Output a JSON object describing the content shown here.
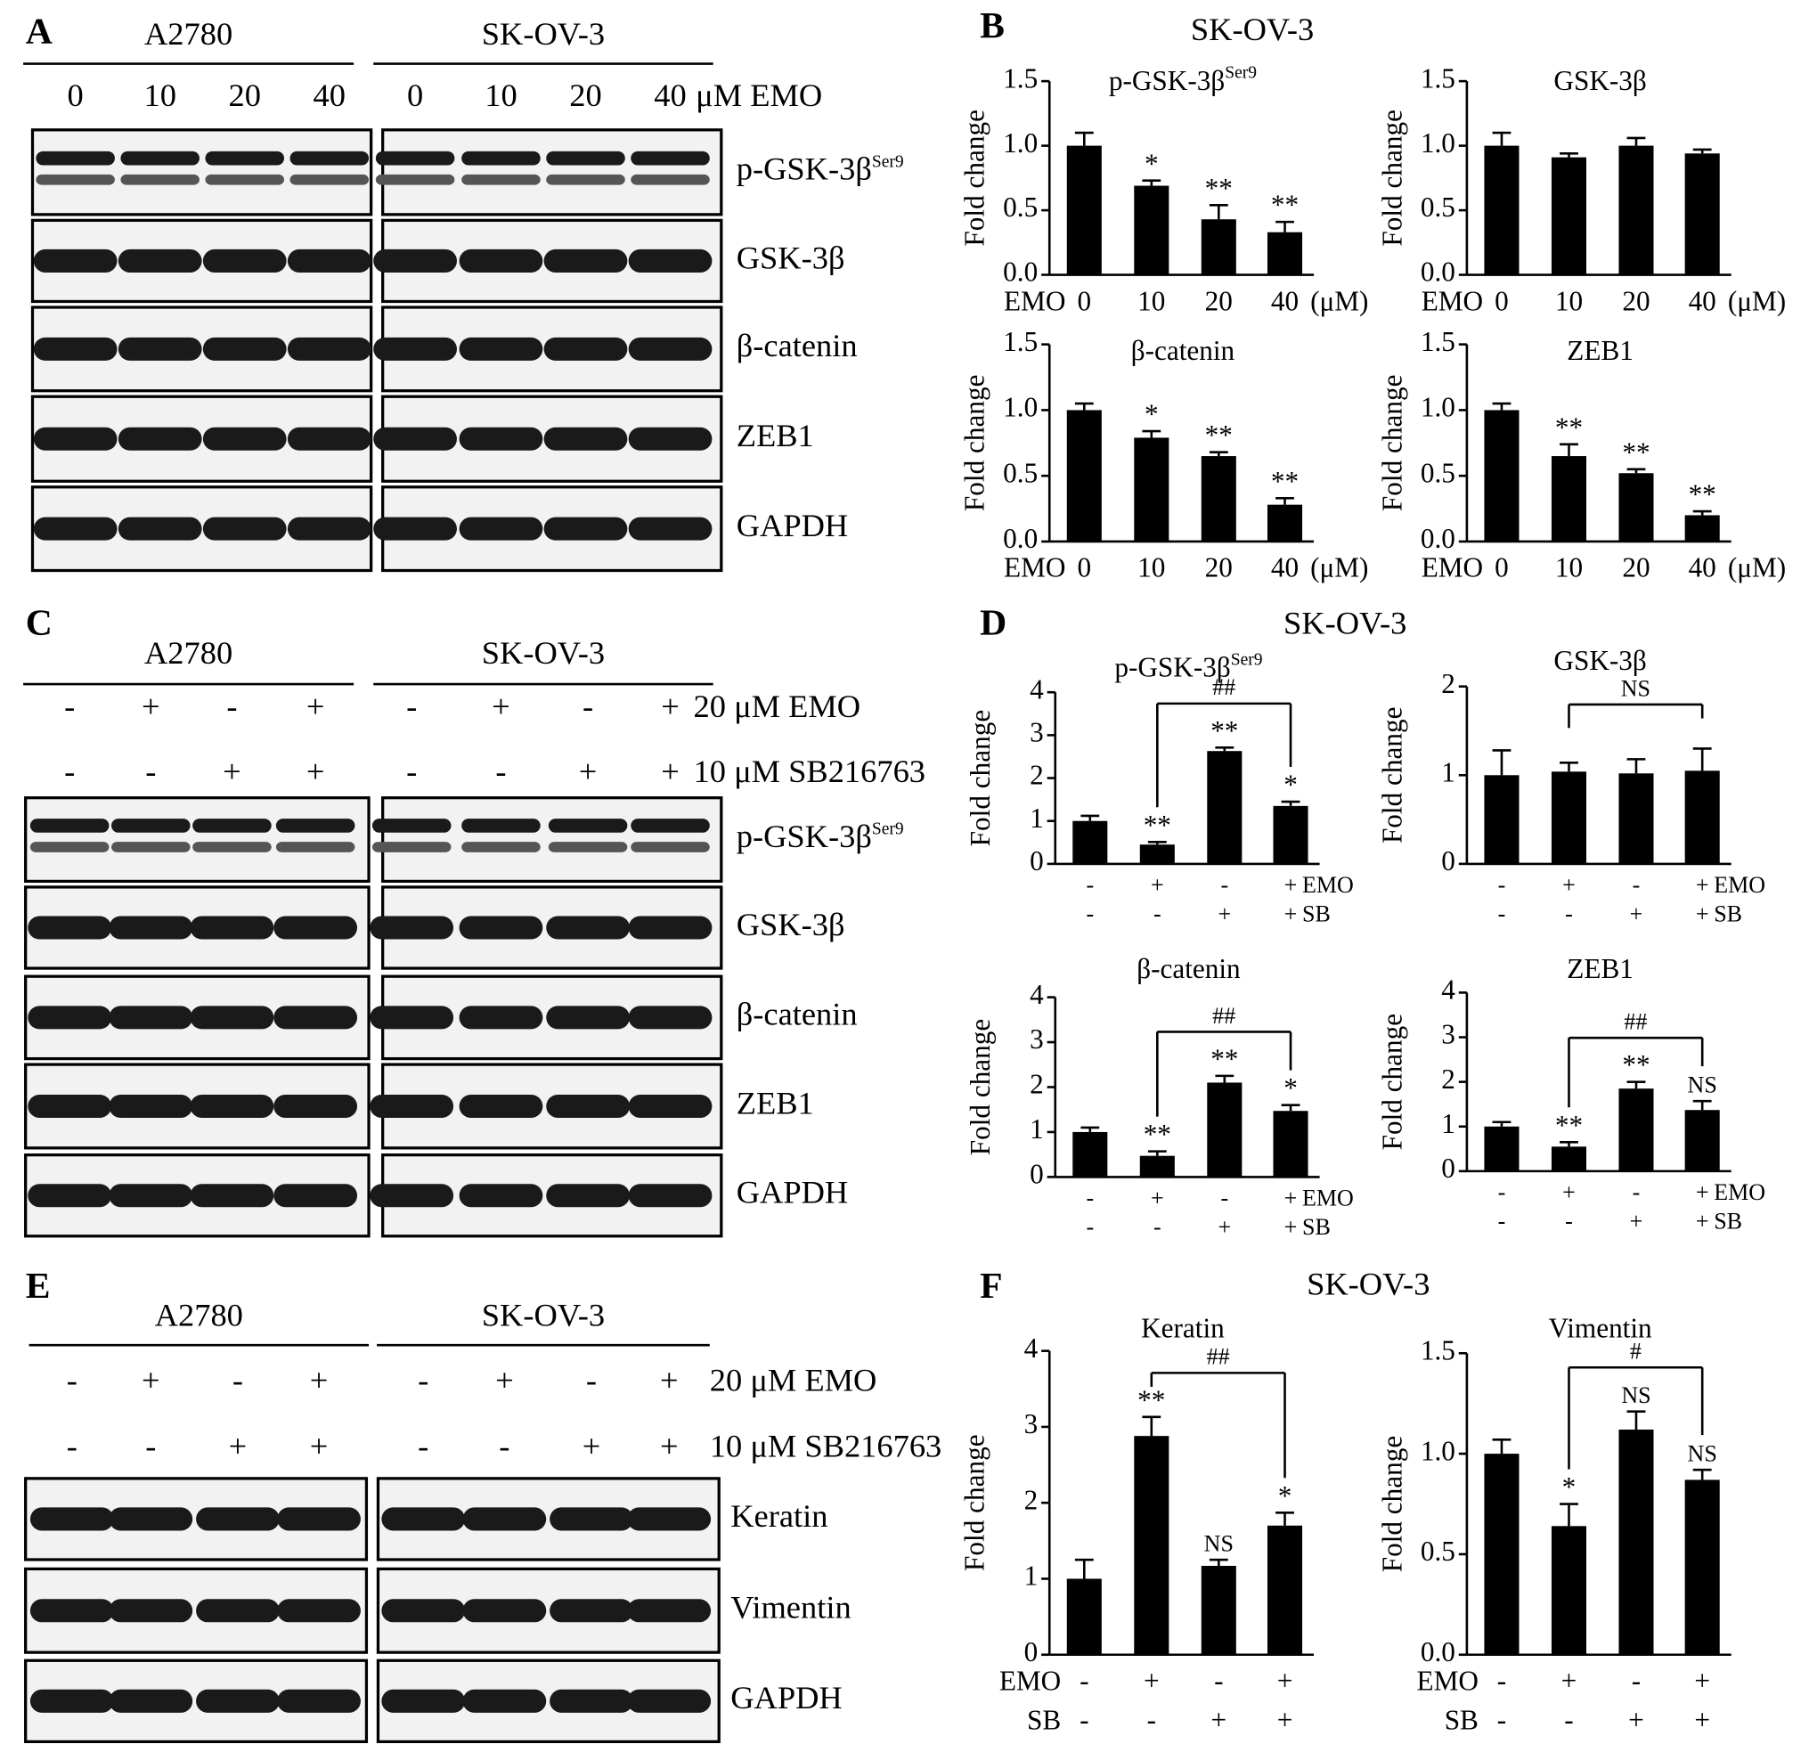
{
  "blots": [
    {
      "letter": "A",
      "groups": [
        "A2780",
        "SK-OV-3"
      ],
      "lanes": [
        "0",
        "10",
        "20",
        "40"
      ],
      "lane_unit": "μM EMO",
      "bands": [
        {
          "name": "p-GSK-3β",
          "sup": "Ser9"
        },
        {
          "name": "GSK-3β"
        },
        {
          "name": "β-catenin"
        },
        {
          "name": "ZEB1"
        },
        {
          "name": "GAPDH"
        }
      ]
    },
    {
      "letter": "C",
      "groups": [
        "A2780",
        "SK-OV-3"
      ],
      "treatments": [
        {
          "signs": [
            "-",
            "+",
            "-",
            "+"
          ],
          "name": "20 μM EMO"
        },
        {
          "signs": [
            "-",
            "-",
            "+",
            "+"
          ],
          "name": "10 μM SB216763"
        }
      ],
      "bands": [
        {
          "name": "p-GSK-3β",
          "sup": "Ser9"
        },
        {
          "name": "GSK-3β"
        },
        {
          "name": "β-catenin"
        },
        {
          "name": "ZEB1"
        },
        {
          "name": "GAPDH"
        }
      ]
    },
    {
      "letter": "E",
      "groups": [
        "A2780",
        "SK-OV-3"
      ],
      "treatments": [
        {
          "signs": [
            "-",
            "+",
            "-",
            "+"
          ],
          "name": "20 μM EMO"
        },
        {
          "signs": [
            "-",
            "-",
            "+",
            "+"
          ],
          "name": "10 μM SB216763"
        }
      ],
      "bands": [
        {
          "name": "Keratin"
        },
        {
          "name": "Vimentin"
        },
        {
          "name": "GAPDH"
        }
      ]
    }
  ],
  "chart_headers": [
    {
      "letter": "B",
      "title": "SK-OV-3"
    },
    {
      "letter": "D",
      "title": "SK-OV-3"
    },
    {
      "letter": "F",
      "title": "SK-OV-3"
    }
  ],
  "chart_data": [
    {
      "type": "bar",
      "title": "p-GSK-3β",
      "title_sup": "Ser9",
      "ylabel": "Fold change",
      "color": "#000000",
      "categories": [
        "0",
        "10",
        "20",
        "40"
      ],
      "x_prefix": "EMO",
      "x_unit": "(μM)",
      "values": [
        1.0,
        0.69,
        0.43,
        0.33
      ],
      "errors": [
        0.1,
        0.04,
        0.11,
        0.08
      ],
      "annotations": [
        null,
        "*",
        "**",
        "**"
      ],
      "ylim": [
        0,
        1.5
      ],
      "yticks": [
        {
          "value": 0,
          "label": "0.0"
        },
        0.5,
        {
          "value": 1,
          "label": "1.0"
        },
        1.5
      ]
    },
    {
      "type": "bar",
      "title": "GSK-3β",
      "ylabel": "Fold change",
      "color": "#000000",
      "categories": [
        "0",
        "10",
        "20",
        "40"
      ],
      "x_prefix": "EMO",
      "x_unit": "(μM)",
      "values": [
        1.0,
        0.91,
        1.0,
        0.94
      ],
      "errors": [
        0.1,
        0.03,
        0.06,
        0.03
      ],
      "ylim": [
        0,
        1.5
      ],
      "yticks": [
        {
          "value": 0,
          "label": "0.0"
        },
        0.5,
        {
          "value": 1,
          "label": "1.0"
        },
        1.5
      ]
    },
    {
      "type": "bar",
      "title": "β-catenin",
      "ylabel": "Fold change",
      "color": "#000000",
      "categories": [
        "0",
        "10",
        "20",
        "40"
      ],
      "x_prefix": "EMO",
      "x_unit": "(μM)",
      "values": [
        1.0,
        0.79,
        0.65,
        0.28
      ],
      "errors": [
        0.05,
        0.05,
        0.03,
        0.05
      ],
      "annotations": [
        null,
        "*",
        "**",
        "**"
      ],
      "ylim": [
        0,
        1.5
      ],
      "yticks": [
        {
          "value": 0,
          "label": "0.0"
        },
        0.5,
        {
          "value": 1,
          "label": "1.0"
        },
        1.5
      ]
    },
    {
      "type": "bar",
      "title": "ZEB1",
      "ylabel": "Fold change",
      "color": "#000000",
      "categories": [
        "0",
        "10",
        "20",
        "40"
      ],
      "x_prefix": "EMO",
      "x_unit": "(μM)",
      "values": [
        1.0,
        0.65,
        0.52,
        0.2
      ],
      "errors": [
        0.05,
        0.09,
        0.03,
        0.03
      ],
      "annotations": [
        null,
        "**",
        "**",
        "**"
      ],
      "ylim": [
        0,
        1.5
      ],
      "yticks": [
        {
          "value": 0,
          "label": "0.0"
        },
        0.5,
        {
          "value": 1,
          "label": "1.0"
        },
        1.5
      ]
    },
    {
      "type": "bar",
      "title": "p-GSK-3β",
      "title_sup": "Ser9",
      "ylabel": "Fold change",
      "color": "#000000",
      "treatments": [
        {
          "name": "EMO",
          "signs": [
            "-",
            "+",
            "-",
            "+"
          ]
        },
        {
          "name": "SB",
          "signs": [
            "-",
            "-",
            "+",
            "+"
          ]
        }
      ],
      "label_pos": "right",
      "values": [
        1.0,
        0.45,
        2.63,
        1.35
      ],
      "errors": [
        0.12,
        0.06,
        0.08,
        0.1
      ],
      "annotations": [
        null,
        "**",
        "**",
        "*"
      ],
      "bracket_label": "##",
      "ylim": [
        0,
        4
      ],
      "yticks": [
        0,
        1,
        2,
        3,
        4
      ]
    },
    {
      "type": "bar",
      "title": "GSK-3β",
      "ylabel": "Fold change",
      "color": "#000000",
      "treatments": [
        {
          "name": "EMO",
          "signs": [
            "-",
            "+",
            "-",
            "+"
          ]
        },
        {
          "name": "SB",
          "signs": [
            "-",
            "-",
            "+",
            "+"
          ]
        }
      ],
      "label_pos": "right",
      "values": [
        1.0,
        1.04,
        1.02,
        1.05
      ],
      "errors": [
        0.28,
        0.1,
        0.16,
        0.25
      ],
      "bracket_label": "NS",
      "ylim": [
        0,
        2
      ],
      "yticks": [
        0,
        1,
        2
      ]
    },
    {
      "type": "bar",
      "title": "β-catenin",
      "ylabel": "Fold change",
      "color": "#000000",
      "treatments": [
        {
          "name": "EMO",
          "signs": [
            "-",
            "+",
            "-",
            "+"
          ]
        },
        {
          "name": "SB",
          "signs": [
            "-",
            "-",
            "+",
            "+"
          ]
        }
      ],
      "label_pos": "right",
      "values": [
        1.0,
        0.47,
        2.1,
        1.47
      ],
      "errors": [
        0.1,
        0.1,
        0.15,
        0.13
      ],
      "annotations": [
        null,
        "**",
        "**",
        "*"
      ],
      "bracket_label": "##",
      "ylim": [
        0,
        4
      ],
      "yticks": [
        0,
        1,
        2,
        3,
        4
      ]
    },
    {
      "type": "bar",
      "title": "ZEB1",
      "ylabel": "Fold change",
      "color": "#000000",
      "treatments": [
        {
          "name": "EMO",
          "signs": [
            "-",
            "+",
            "-",
            "+"
          ]
        },
        {
          "name": "SB",
          "signs": [
            "-",
            "-",
            "+",
            "+"
          ]
        }
      ],
      "label_pos": "right",
      "values": [
        1.0,
        0.55,
        1.85,
        1.37
      ],
      "errors": [
        0.1,
        0.1,
        0.15,
        0.2
      ],
      "annotations": [
        null,
        "**",
        "**",
        "NS"
      ],
      "bracket_label": "##",
      "ylim": [
        0,
        4
      ],
      "yticks": [
        0,
        1,
        2,
        3,
        4
      ]
    },
    {
      "type": "bar",
      "title": "Keratin",
      "ylabel": "Fold change",
      "color": "#000000",
      "treatments": [
        {
          "name": "EMO",
          "signs": [
            "-",
            "+",
            "-",
            "+"
          ]
        },
        {
          "name": "SB",
          "signs": [
            "-",
            "-",
            "+",
            "+"
          ]
        }
      ],
      "label_pos": "left",
      "values": [
        1.0,
        2.88,
        1.17,
        1.7
      ],
      "errors": [
        0.25,
        0.25,
        0.08,
        0.17
      ],
      "annotations": [
        null,
        "**",
        "NS",
        "*"
      ],
      "bracket_label": "##",
      "ylim": [
        0,
        4
      ],
      "yticks": [
        0,
        1,
        2,
        3,
        4
      ]
    },
    {
      "type": "bar",
      "title": "Vimentin",
      "ylabel": "Fold change",
      "color": "#000000",
      "treatments": [
        {
          "name": "EMO",
          "signs": [
            "-",
            "+",
            "-",
            "+"
          ]
        },
        {
          "name": "SB",
          "signs": [
            "-",
            "-",
            "+",
            "+"
          ]
        }
      ],
      "label_pos": "left",
      "values": [
        1.0,
        0.64,
        1.12,
        0.87
      ],
      "errors": [
        0.07,
        0.11,
        0.09,
        0.05
      ],
      "annotations": [
        null,
        "*",
        "NS",
        "NS"
      ],
      "bracket_label": "#",
      "ylim": [
        0,
        1.5
      ],
      "yticks": [
        {
          "value": 0,
          "label": "0.0"
        },
        0.5,
        {
          "value": 1,
          "label": "1.0"
        },
        1.5
      ]
    }
  ]
}
